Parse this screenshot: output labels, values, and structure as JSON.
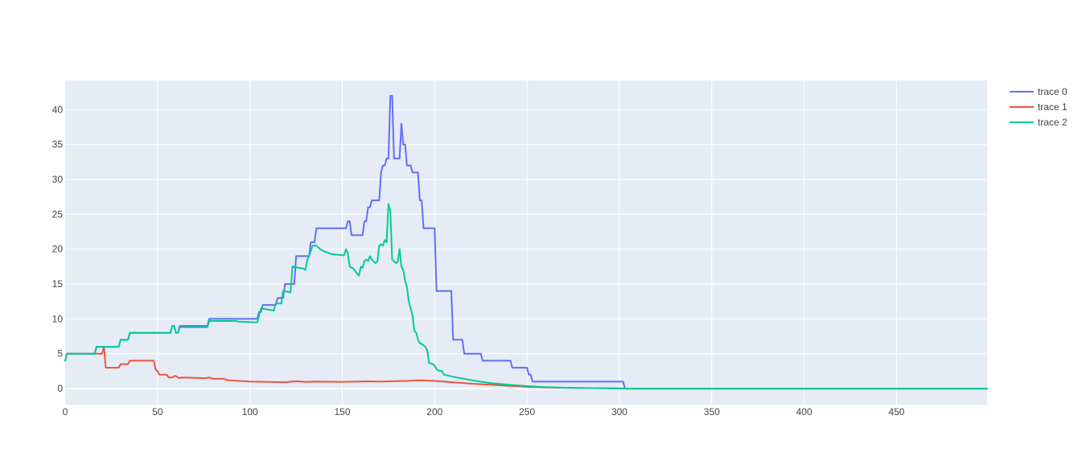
{
  "chart_data": {
    "type": "line",
    "title": "",
    "xlabel": "",
    "ylabel": "",
    "xlim": [
      0,
      499
    ],
    "ylim": [
      -2.3,
      44.2
    ],
    "x_ticks": [
      0,
      50,
      100,
      150,
      200,
      250,
      300,
      350,
      400,
      450
    ],
    "y_ticks": [
      0,
      5,
      10,
      15,
      20,
      25,
      30,
      35,
      40
    ],
    "grid": true,
    "legend_position": "top-right",
    "plot_background": "#E5ECF6",
    "series": [
      {
        "name": "trace 0",
        "color": "#636EFA",
        "points": [
          [
            0,
            4
          ],
          [
            1,
            5
          ],
          [
            16,
            5
          ],
          [
            17,
            6
          ],
          [
            29,
            6
          ],
          [
            30,
            7
          ],
          [
            34,
            7
          ],
          [
            35,
            8
          ],
          [
            57,
            8
          ],
          [
            58,
            9
          ],
          [
            59,
            9
          ],
          [
            60,
            8
          ],
          [
            61,
            8
          ],
          [
            62,
            9
          ],
          [
            77,
            9
          ],
          [
            78,
            10
          ],
          [
            104,
            10
          ],
          [
            105,
            11
          ],
          [
            106,
            11
          ],
          [
            107,
            12
          ],
          [
            114,
            12
          ],
          [
            115,
            13
          ],
          [
            118,
            13
          ],
          [
            119,
            15
          ],
          [
            124,
            15
          ],
          [
            125,
            19
          ],
          [
            132,
            19
          ],
          [
            133,
            21
          ],
          [
            135,
            21
          ],
          [
            136,
            23
          ],
          [
            152,
            23
          ],
          [
            153,
            24
          ],
          [
            154,
            24
          ],
          [
            155,
            22
          ],
          [
            161,
            22
          ],
          [
            162,
            24
          ],
          [
            163,
            24
          ],
          [
            164,
            26
          ],
          [
            165,
            26
          ],
          [
            166,
            27
          ],
          [
            170,
            27
          ],
          [
            171,
            31
          ],
          [
            172,
            32
          ],
          [
            173,
            32
          ],
          [
            174,
            33
          ],
          [
            175,
            33
          ],
          [
            176,
            42
          ],
          [
            177,
            42
          ],
          [
            178,
            33
          ],
          [
            181,
            33
          ],
          [
            182,
            38
          ],
          [
            183,
            35
          ],
          [
            184,
            35
          ],
          [
            185,
            32
          ],
          [
            187,
            32
          ],
          [
            188,
            31
          ],
          [
            191,
            31
          ],
          [
            192,
            27
          ],
          [
            193,
            27
          ],
          [
            194,
            23
          ],
          [
            200,
            23
          ],
          [
            201,
            14
          ],
          [
            209,
            14
          ],
          [
            210,
            7
          ],
          [
            215,
            7
          ],
          [
            216,
            5
          ],
          [
            225,
            5
          ],
          [
            226,
            4
          ],
          [
            241,
            4
          ],
          [
            242,
            3
          ],
          [
            250,
            3
          ],
          [
            251,
            2
          ],
          [
            252,
            2
          ],
          [
            253,
            1
          ],
          [
            302,
            1
          ],
          [
            303,
            0
          ],
          [
            499,
            0
          ]
        ]
      },
      {
        "name": "trace 1",
        "color": "#EF553B",
        "points": [
          [
            0,
            4
          ],
          [
            1,
            5
          ],
          [
            20,
            5
          ],
          [
            21,
            6
          ],
          [
            22,
            3
          ],
          [
            29,
            3
          ],
          [
            30,
            3.5
          ],
          [
            34,
            3.5
          ],
          [
            35,
            4
          ],
          [
            48,
            4
          ],
          [
            49,
            2.7
          ],
          [
            50,
            2.5
          ],
          [
            51,
            2
          ],
          [
            55,
            2
          ],
          [
            56,
            1.6
          ],
          [
            58,
            1.6
          ],
          [
            59,
            1.8
          ],
          [
            60,
            1.8
          ],
          [
            61,
            1.6
          ],
          [
            62,
            1.5
          ],
          [
            63,
            1.6
          ],
          [
            76,
            1.5
          ],
          [
            78,
            1.6
          ],
          [
            80,
            1.4
          ],
          [
            86,
            1.4
          ],
          [
            88,
            1.2
          ],
          [
            94,
            1.1
          ],
          [
            100,
            1.0
          ],
          [
            110,
            0.95
          ],
          [
            120,
            0.9
          ],
          [
            122,
            1.0
          ],
          [
            126,
            1.05
          ],
          [
            130,
            0.95
          ],
          [
            135,
            1.0
          ],
          [
            150,
            0.95
          ],
          [
            158,
            1.0
          ],
          [
            164,
            1.05
          ],
          [
            170,
            1.0
          ],
          [
            175,
            1.05
          ],
          [
            185,
            1.1
          ],
          [
            192,
            1.2
          ],
          [
            200,
            1.1
          ],
          [
            210,
            0.9
          ],
          [
            220,
            0.7
          ],
          [
            230,
            0.55
          ],
          [
            240,
            0.4
          ],
          [
            250,
            0.25
          ],
          [
            260,
            0.15
          ],
          [
            275,
            0.1
          ],
          [
            290,
            0.05
          ],
          [
            303,
            0.0
          ],
          [
            499,
            0
          ]
        ]
      },
      {
        "name": "trace 2",
        "color": "#00CC96",
        "points": [
          [
            0,
            4
          ],
          [
            1,
            5
          ],
          [
            16,
            5
          ],
          [
            17,
            6
          ],
          [
            29,
            6
          ],
          [
            30,
            7
          ],
          [
            34,
            7
          ],
          [
            35,
            8
          ],
          [
            57,
            8
          ],
          [
            58,
            9
          ],
          [
            59,
            9
          ],
          [
            60,
            8
          ],
          [
            61,
            8
          ],
          [
            62,
            8.8
          ],
          [
            77,
            8.8
          ],
          [
            78,
            9.7
          ],
          [
            92,
            9.7
          ],
          [
            94,
            9.6
          ],
          [
            104,
            9.5
          ],
          [
            105,
            10.5
          ],
          [
            106,
            11.5
          ],
          [
            113,
            11.2
          ],
          [
            114,
            12.2
          ],
          [
            117,
            12.2
          ],
          [
            118,
            14
          ],
          [
            122,
            13.8
          ],
          [
            123,
            17.5
          ],
          [
            129,
            17.2
          ],
          [
            130,
            17
          ],
          [
            131,
            18.5
          ],
          [
            132,
            19
          ],
          [
            134,
            20.5
          ],
          [
            136,
            20.5
          ],
          [
            138,
            20
          ],
          [
            140,
            19.7
          ],
          [
            142,
            19.5
          ],
          [
            144,
            19.3
          ],
          [
            148,
            19.2
          ],
          [
            151,
            19.1
          ],
          [
            152,
            20
          ],
          [
            153,
            19.5
          ],
          [
            154,
            17.5
          ],
          [
            156,
            17.2
          ],
          [
            158,
            16.5
          ],
          [
            159,
            16.2
          ],
          [
            160,
            17.5
          ],
          [
            161,
            17.3
          ],
          [
            162,
            18.3
          ],
          [
            163,
            18.5
          ],
          [
            164,
            18.3
          ],
          [
            165,
            19
          ],
          [
            166,
            18.5
          ],
          [
            168,
            18
          ],
          [
            169,
            18.2
          ],
          [
            170,
            20.5
          ],
          [
            171,
            20.7
          ],
          [
            172,
            20.5
          ],
          [
            173,
            21.3
          ],
          [
            174,
            21
          ],
          [
            175,
            26.5
          ],
          [
            176,
            25.5
          ],
          [
            177,
            18.5
          ],
          [
            179,
            18
          ],
          [
            180,
            18.2
          ],
          [
            181,
            20
          ],
          [
            182,
            17.5
          ],
          [
            183,
            17
          ],
          [
            184,
            15.5
          ],
          [
            185,
            14.5
          ],
          [
            186,
            12.5
          ],
          [
            187,
            11.5
          ],
          [
            188,
            10.5
          ],
          [
            189,
            8.3
          ],
          [
            190,
            8
          ],
          [
            191,
            7
          ],
          [
            192,
            6.5
          ],
          [
            193,
            6.4
          ],
          [
            194,
            6.2
          ],
          [
            195,
            6
          ],
          [
            196,
            5.5
          ],
          [
            197,
            3.7
          ],
          [
            199,
            3.5
          ],
          [
            200,
            3.3
          ],
          [
            201,
            2.8
          ],
          [
            202,
            2.6
          ],
          [
            204,
            2.5
          ],
          [
            205,
            2
          ],
          [
            210,
            1.7
          ],
          [
            220,
            1.2
          ],
          [
            230,
            0.8
          ],
          [
            240,
            0.55
          ],
          [
            250,
            0.35
          ],
          [
            260,
            0.2
          ],
          [
            275,
            0.1
          ],
          [
            290,
            0.05
          ],
          [
            300,
            0.02
          ],
          [
            310,
            0
          ],
          [
            499,
            0
          ]
        ]
      }
    ]
  }
}
